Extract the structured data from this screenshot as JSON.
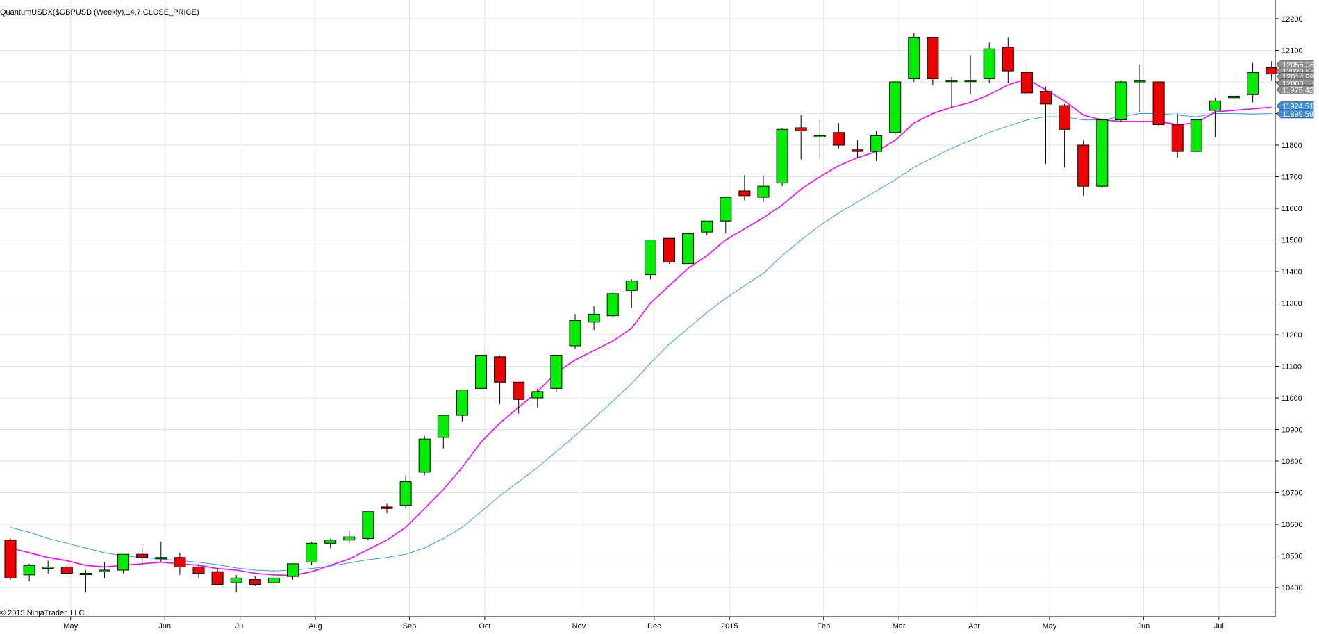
{
  "title": "QuantumUSDX($GBPUSD (Weekly),14,7,CLOSE_PRICE)",
  "copyright": "© 2015 NinjaTrader, LLC",
  "chart_data": {
    "type": "candlestick",
    "timeframe": "weekly",
    "y_axis": {
      "min": 10360,
      "max": 12240,
      "ticks": [
        10400,
        10500,
        10600,
        10700,
        10800,
        10900,
        11000,
        11100,
        11200,
        11300,
        11400,
        11500,
        11600,
        11700,
        11800,
        11900,
        12000,
        12100,
        12200
      ],
      "position": "right"
    },
    "x_axis": {
      "labels": [
        {
          "label": "May",
          "index": 3.2
        },
        {
          "label": "Jun",
          "index": 8.2
        },
        {
          "label": "Jul",
          "index": 12.2
        },
        {
          "label": "Aug",
          "index": 16.2
        },
        {
          "label": "Sep",
          "index": 21.2
        },
        {
          "label": "Oct",
          "index": 25.2
        },
        {
          "label": "Nov",
          "index": 30.2
        },
        {
          "label": "Dec",
          "index": 34.2
        },
        {
          "label": "2015",
          "index": 38.2
        },
        {
          "label": "Feb",
          "index": 43.2
        },
        {
          "label": "Mar",
          "index": 47.2
        },
        {
          "label": "Apr",
          "index": 51.2
        },
        {
          "label": "May",
          "index": 55.2
        },
        {
          "label": "Jun",
          "index": 60.2
        },
        {
          "label": "Jul",
          "index": 64.2
        }
      ]
    },
    "grid": true,
    "candles": [
      [
        10550,
        10555,
        10425,
        10430
      ],
      [
        10440,
        10475,
        10420,
        10470
      ],
      [
        10465,
        10485,
        10445,
        10465
      ],
      [
        10465,
        10470,
        10440,
        10445
      ],
      [
        10445,
        10455,
        10385,
        10445
      ],
      [
        10450,
        10480,
        10430,
        10455
      ],
      [
        10455,
        10505,
        10445,
        10505
      ],
      [
        10505,
        10530,
        10475,
        10495
      ],
      [
        10495,
        10545,
        10480,
        10495
      ],
      [
        10495,
        10510,
        10440,
        10465
      ],
      [
        10465,
        10475,
        10430,
        10445
      ],
      [
        10450,
        10460,
        10410,
        10410
      ],
      [
        10415,
        10440,
        10385,
        10430
      ],
      [
        10425,
        10435,
        10405,
        10410
      ],
      [
        10415,
        10455,
        10400,
        10430
      ],
      [
        10435,
        10475,
        10425,
        10475
      ],
      [
        10480,
        10545,
        10470,
        10540
      ],
      [
        10540,
        10555,
        10525,
        10550
      ],
      [
        10550,
        10580,
        10540,
        10560
      ],
      [
        10555,
        10640,
        10550,
        10640
      ],
      [
        10655,
        10665,
        10635,
        10650
      ],
      [
        10660,
        10755,
        10650,
        10735
      ],
      [
        10765,
        10880,
        10755,
        10870
      ],
      [
        10875,
        10945,
        10840,
        10945
      ],
      [
        10945,
        11020,
        10925,
        11025
      ],
      [
        11030,
        11135,
        11010,
        11135
      ],
      [
        11130,
        11135,
        10980,
        11050
      ],
      [
        11050,
        11050,
        10950,
        10995
      ],
      [
        11000,
        11030,
        10970,
        11020
      ],
      [
        11030,
        11135,
        11020,
        11135
      ],
      [
        11165,
        11265,
        11155,
        11245
      ],
      [
        11240,
        11290,
        11215,
        11265
      ],
      [
        11260,
        11335,
        11255,
        11330
      ],
      [
        11340,
        11375,
        11285,
        11370
      ],
      [
        11390,
        11500,
        11375,
        11500
      ],
      [
        11505,
        11505,
        11425,
        11430
      ],
      [
        11425,
        11525,
        11410,
        11520
      ],
      [
        11525,
        11560,
        11515,
        11560
      ],
      [
        11560,
        11635,
        11520,
        11635
      ],
      [
        11655,
        11705,
        11625,
        11640
      ],
      [
        11635,
        11705,
        11620,
        11670
      ],
      [
        11680,
        11855,
        11670,
        11850
      ],
      [
        11855,
        11895,
        11755,
        11845
      ],
      [
        11830,
        11880,
        11760,
        11830
      ],
      [
        11840,
        11870,
        11790,
        11800
      ],
      [
        11785,
        11815,
        11760,
        11780
      ],
      [
        11780,
        11845,
        11750,
        11830
      ],
      [
        11840,
        12005,
        11830,
        12000
      ],
      [
        12010,
        12155,
        12000,
        12140
      ],
      [
        12140,
        12140,
        11990,
        12010
      ],
      [
        12005,
        12015,
        11920,
        12005
      ],
      [
        12005,
        12085,
        11960,
        12005
      ],
      [
        12010,
        12125,
        11995,
        12105
      ],
      [
        12110,
        12140,
        11995,
        12035
      ],
      [
        12030,
        12060,
        11960,
        11965
      ],
      [
        11970,
        11985,
        11740,
        11930
      ],
      [
        11925,
        11930,
        11730,
        11850
      ],
      [
        11800,
        11815,
        11640,
        11670
      ],
      [
        11670,
        11880,
        11665,
        11880
      ],
      [
        11880,
        12005,
        11875,
        12000
      ],
      [
        12000,
        12055,
        11905,
        12005
      ],
      [
        12000,
        12000,
        11860,
        11865
      ],
      [
        11865,
        11900,
        11760,
        11780
      ],
      [
        11780,
        11880,
        11780,
        11880
      ],
      [
        11910,
        11950,
        11825,
        11940
      ],
      [
        11950,
        12025,
        11935,
        11955
      ],
      [
        11960,
        12060,
        11935,
        12030
      ],
      [
        12045,
        12065,
        12005,
        12025
      ]
    ],
    "series": [
      {
        "name": "",
        "color": "#ff00ff",
        "values": [
          10525,
          10510,
          10495,
          10485,
          10470,
          10465,
          10470,
          10475,
          10480,
          10475,
          10470,
          10460,
          10455,
          10445,
          10440,
          10438,
          10450,
          10470,
          10490,
          10520,
          10550,
          10590,
          10650,
          10710,
          10780,
          10860,
          10920,
          10970,
          11020,
          11080,
          11120,
          11150,
          11180,
          11220,
          11300,
          11355,
          11410,
          11450,
          11500,
          11535,
          11570,
          11610,
          11660,
          11700,
          11735,
          11760,
          11780,
          11815,
          11870,
          11900,
          11920,
          11935,
          11960,
          11990,
          12010,
          11975,
          11940,
          11895,
          11880,
          11875,
          11875,
          11875,
          11865,
          11870,
          11905,
          11910,
          11915,
          11920
        ]
      },
      {
        "name": "",
        "color": "#3399ff",
        "values": [
          10590,
          10575,
          10555,
          10540,
          10525,
          10510,
          10500,
          10495,
          10490,
          10485,
          10480,
          10472,
          10462,
          10455,
          10452,
          10455,
          10460,
          10468,
          10478,
          10488,
          10495,
          10505,
          10525,
          10555,
          10590,
          10640,
          10690,
          10735,
          10780,
          10830,
          10880,
          10935,
          10990,
          11045,
          11110,
          11170,
          11220,
          11270,
          11315,
          11355,
          11395,
          11450,
          11500,
          11545,
          11585,
          11620,
          11655,
          11690,
          11730,
          11760,
          11790,
          11815,
          11840,
          11860,
          11880,
          11890,
          11890,
          11880,
          11880,
          11890,
          11900,
          11900,
          11895,
          11890,
          11900,
          11900,
          11898,
          11900
        ]
      }
    ],
    "price_tags": [
      {
        "label": "12055.06",
        "value": 12055,
        "color": "#909090"
      },
      {
        "label": "12029.67",
        "value": 12034,
        "color": "#909090"
      },
      {
        "label": "12014.99",
        "value": 12016,
        "color": "#909090"
      },
      {
        "label": "12000",
        "value": 11996,
        "color": "#909090"
      },
      {
        "label": "11975.42",
        "value": 11975,
        "color": "#909090"
      },
      {
        "label": "11924.51",
        "value": 11924,
        "color": "#3a8ee6"
      },
      {
        "label": "11899.59",
        "value": 11899,
        "color": "#3a8ee6"
      }
    ],
    "colors": {
      "up": "#00ee00",
      "down": "#ee0000",
      "grid": "#e2e2e2",
      "axis": "#000000"
    }
  }
}
